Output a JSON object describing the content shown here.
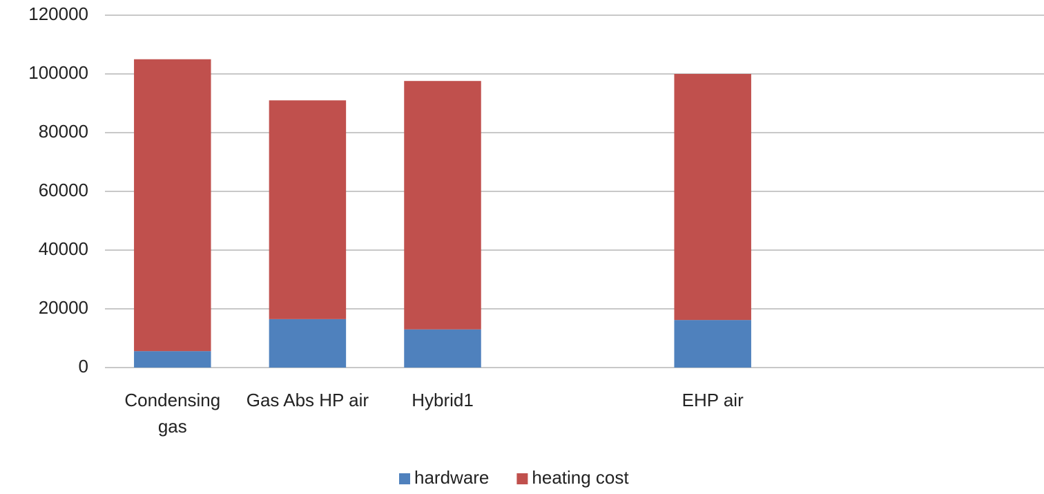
{
  "chart_data": {
    "type": "stacked_bar",
    "categories": [
      "Condensing gas",
      "Gas Abs HP air",
      "Hybrid1",
      null,
      "EHP air",
      null,
      null
    ],
    "series": [
      {
        "name": "hardware",
        "color": "#4f81bd",
        "values": [
          5600,
          16500,
          13000,
          null,
          16200,
          null,
          null
        ]
      },
      {
        "name": "heating cost",
        "color": "#c0504d",
        "values": [
          99400,
          74500,
          84600,
          null,
          83800,
          null,
          null
        ]
      }
    ],
    "ylim": [
      0,
      120000
    ],
    "yticks": [
      0,
      20000,
      40000,
      60000,
      80000,
      100000,
      120000
    ],
    "grid": true,
    "legend": "bottom"
  }
}
